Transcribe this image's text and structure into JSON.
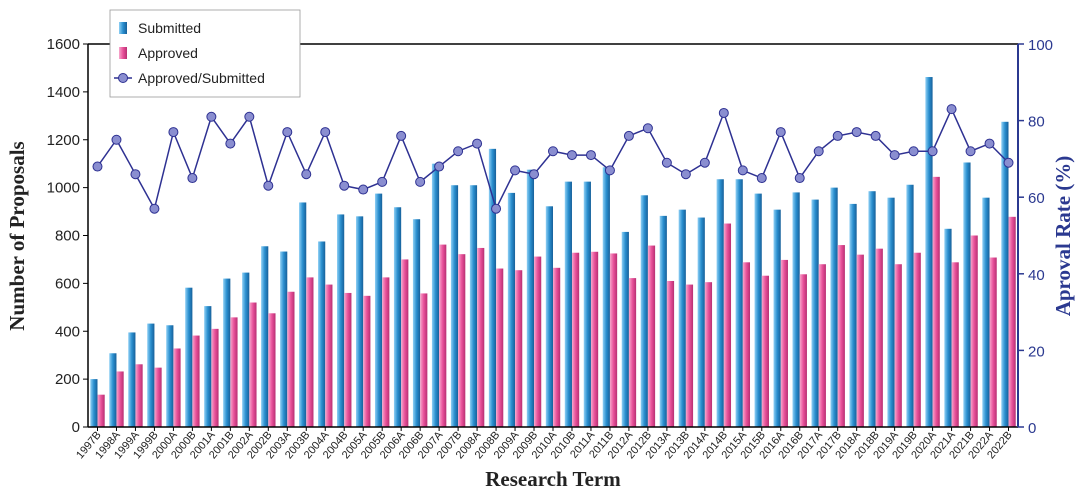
{
  "chart_data": {
    "type": "bar_line",
    "x_label": "Research Term",
    "y_label": "Number of Proposals",
    "y2_label": "Aproval Rate (%)",
    "categories": [
      "1997B",
      "1998A",
      "1999A",
      "1999B",
      "2000A",
      "2000B",
      "2001A",
      "2001B",
      "2002A",
      "2002B",
      "2003A",
      "2003B",
      "2004A",
      "2004B",
      "2005A",
      "2005B",
      "2006A",
      "2006B",
      "2007A",
      "2007B",
      "2008A",
      "2008B",
      "2009A",
      "2009B",
      "2010A",
      "2010B",
      "2011A",
      "2011B",
      "2012A",
      "2012B",
      "2013A",
      "2013B",
      "2014A",
      "2014B",
      "2015A",
      "2015B",
      "2016A",
      "2016B",
      "2017A",
      "2017B",
      "2018A",
      "2018B",
      "2019A",
      "2019B",
      "2020A",
      "2021A",
      "2021B",
      "2022A",
      "2022B"
    ],
    "series": [
      {
        "name": "Submitted",
        "color": "#2a8fcf",
        "values": [
          200,
          308,
          395,
          432,
          425,
          582,
          505,
          620,
          645,
          755,
          733,
          938,
          775,
          888,
          880,
          975,
          918,
          868,
          1100,
          1010,
          1010,
          1162,
          978,
          1075,
          922,
          1025,
          1025,
          1085,
          815,
          968,
          882,
          908,
          875,
          1035,
          1035,
          975,
          908,
          980,
          950,
          1000,
          932,
          985,
          958,
          1012,
          1462,
          828,
          1105,
          958,
          1275
        ]
      },
      {
        "name": "Approved",
        "color": "#e8519a",
        "values": [
          135,
          232,
          262,
          248,
          328,
          382,
          410,
          458,
          520,
          475,
          565,
          625,
          595,
          560,
          548,
          625,
          700,
          558,
          762,
          722,
          748,
          662,
          655,
          712,
          665,
          728,
          732,
          725,
          622,
          758,
          610,
          595,
          605,
          850,
          688,
          632,
          698,
          638,
          680,
          760,
          720,
          745,
          680,
          728,
          1045,
          688,
          800,
          708,
          878
        ]
      },
      {
        "name": "Approved/Submitted",
        "color": "#2e3192",
        "axis": "y2",
        "values": [
          68,
          75,
          66,
          57,
          77,
          65,
          81,
          74,
          81,
          63,
          77,
          66,
          77,
          63,
          62,
          64,
          76,
          64,
          68,
          72,
          74,
          57,
          67,
          66,
          72,
          71,
          71,
          67,
          76,
          78,
          69,
          66,
          69,
          82,
          67,
          65,
          77,
          65,
          72,
          76,
          77,
          76,
          71,
          72,
          72,
          83,
          72,
          74,
          69
        ]
      }
    ],
    "ylim": [
      0,
      1600
    ],
    "yticks": [
      0,
      200,
      400,
      600,
      800,
      1000,
      1200,
      1400,
      1600
    ],
    "y2lim": [
      0,
      100
    ],
    "y2ticks": [
      0,
      20,
      40,
      60,
      80,
      100
    ],
    "legend": "top-left"
  }
}
